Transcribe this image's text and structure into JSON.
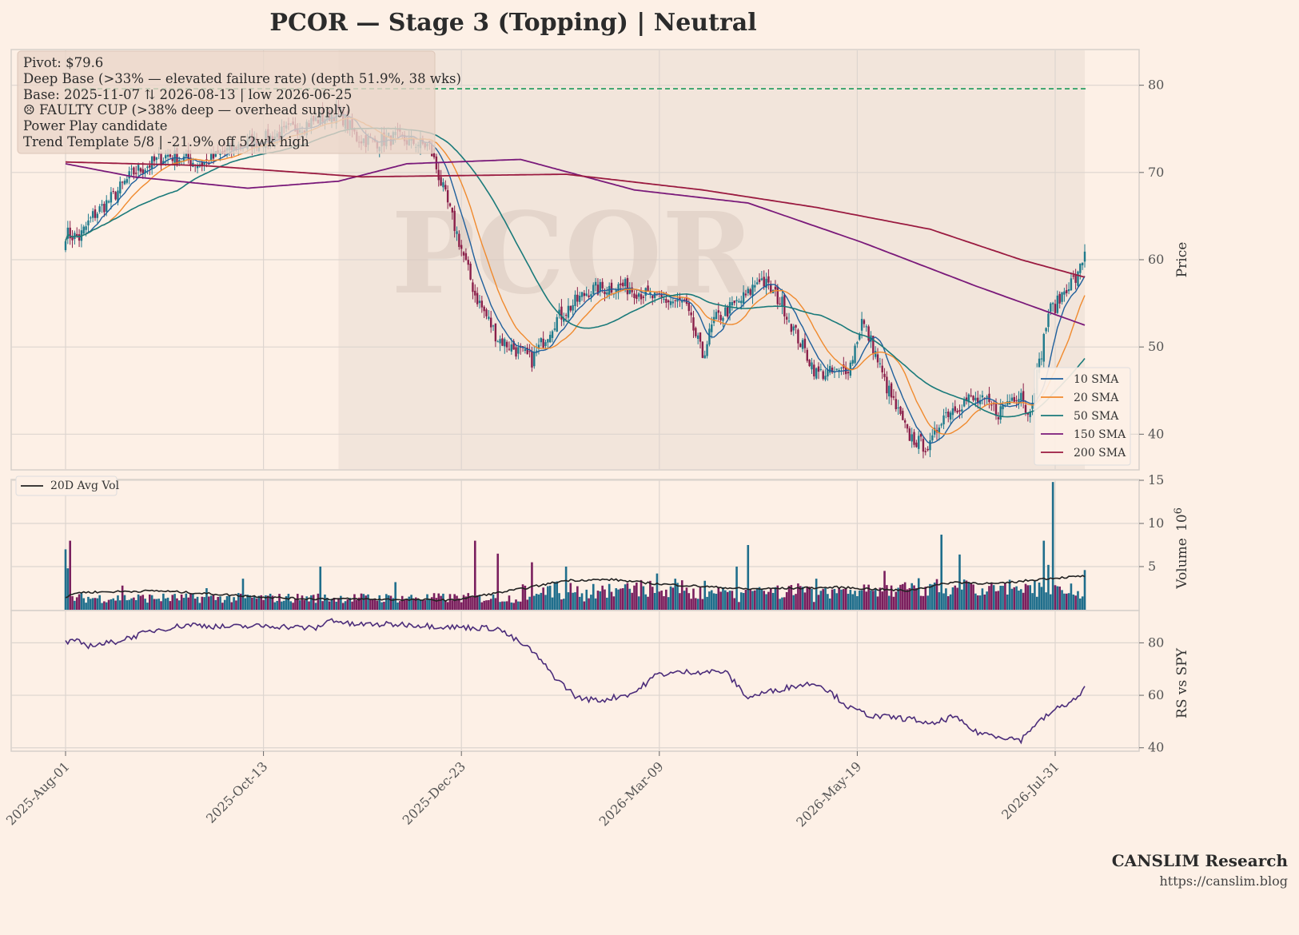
{
  "title": "PCOR  —  Stage 3 (Topping)  |  Neutral",
  "watermark": "PCOR",
  "annotations": [
    "Pivot: $79.6",
    "Deep Base (>33% — elevated failure rate)  (depth 51.9%, 38 wks)",
    "Base: 2025-11-07 ⇅ 2026-08-13  |  low 2026-06-25",
    "☹ FAULTY CUP (>38% deep — overhead supply)",
    "Power Play candidate",
    "Trend Template 5/8  |  -21.9% off 52wk high"
  ],
  "brand": {
    "name": "CANSLIM Research",
    "url": "https://canslim.blog"
  },
  "colors": {
    "background": "#fdf0e6",
    "base_shade": "#f2e5db",
    "up": "#1f7a8c",
    "down": "#8a1f4a",
    "vol_up": "#1f6e8c",
    "vol_down": "#7a1f5e",
    "pivot": "#1a9a5a",
    "rs": "#4b2c7a",
    "avg_vol": "#222222"
  },
  "chart_data": [
    {
      "type": "candlestick",
      "ylabel": "Price",
      "ylim": [
        36,
        84
      ],
      "yticks": [
        40,
        50,
        60,
        70,
        80
      ],
      "x_ticks": [
        "2025-Aug-01",
        "2025-Oct-13",
        "2025-Dec-23",
        "2026-Mar-09",
        "2026-May-19",
        "2026-Jul-31"
      ],
      "pivot": 79.6,
      "base_start": "2025-11-07",
      "base_end": "2026-08-13",
      "legend_position": "lower-right",
      "close_anchors": [
        [
          0,
          63
        ],
        [
          6,
          62.5
        ],
        [
          12,
          65
        ],
        [
          20,
          67
        ],
        [
          30,
          70
        ],
        [
          45,
          72
        ],
        [
          60,
          71
        ],
        [
          75,
          73
        ],
        [
          90,
          74
        ],
        [
          110,
          76
        ],
        [
          120,
          77
        ],
        [
          128,
          74
        ],
        [
          135,
          73.5
        ],
        [
          145,
          74
        ],
        [
          160,
          73
        ],
        [
          172,
          63
        ],
        [
          180,
          56
        ],
        [
          190,
          51
        ],
        [
          205,
          48.5
        ],
        [
          215,
          53
        ],
        [
          230,
          56.5
        ],
        [
          245,
          57
        ],
        [
          260,
          55.5
        ],
        [
          272,
          55
        ],
        [
          280,
          49
        ],
        [
          285,
          53
        ],
        [
          295,
          55
        ],
        [
          300,
          56
        ],
        [
          305,
          58
        ],
        [
          315,
          55
        ],
        [
          320,
          52
        ],
        [
          330,
          47
        ],
        [
          340,
          47
        ],
        [
          345,
          48
        ],
        [
          350,
          53
        ],
        [
          355,
          50
        ],
        [
          360,
          46
        ],
        [
          365,
          43
        ],
        [
          370,
          40
        ],
        [
          375,
          39
        ],
        [
          380,
          38.5
        ],
        [
          385,
          42
        ],
        [
          390,
          43
        ],
        [
          397,
          44
        ],
        [
          405,
          43.5
        ],
        [
          410,
          42.5
        ],
        [
          415,
          44
        ],
        [
          420,
          45
        ],
        [
          423,
          42
        ],
        [
          428,
          48
        ],
        [
          432,
          54
        ],
        [
          436,
          55
        ],
        [
          440,
          57
        ],
        [
          445,
          58
        ],
        [
          448,
          61
        ]
      ],
      "legend": [
        {
          "name": "10 SMA",
          "color": "#1f5f9c"
        },
        {
          "name": "20 SMA",
          "color": "#f08a2e"
        },
        {
          "name": "50 SMA",
          "color": "#1a7a7a"
        },
        {
          "name": "150 SMA",
          "color": "#7a1a7a"
        },
        {
          "name": "200 SMA",
          "color": "#9a1a40"
        }
      ],
      "sma150_anchors": [
        [
          0,
          71
        ],
        [
          30,
          69.5
        ],
        [
          80,
          68.2
        ],
        [
          120,
          69
        ],
        [
          150,
          71
        ],
        [
          200,
          71.5
        ],
        [
          250,
          68
        ],
        [
          300,
          66.5
        ],
        [
          350,
          62
        ],
        [
          400,
          57
        ],
        [
          448,
          52.5
        ]
      ],
      "sma200_anchors": [
        [
          0,
          71.2
        ],
        [
          60,
          70.8
        ],
        [
          130,
          69.5
        ],
        [
          220,
          69.8
        ],
        [
          280,
          68
        ],
        [
          330,
          66
        ],
        [
          380,
          63.5
        ],
        [
          420,
          60
        ],
        [
          448,
          58
        ]
      ]
    },
    {
      "type": "bar",
      "ylabel": "Volume",
      "unit_multiplier": "10^6",
      "ylim": [
        0,
        15
      ],
      "yticks": [
        5,
        10,
        15
      ],
      "legend": [
        {
          "name": "20D Avg Vol",
          "color": "#222222"
        }
      ],
      "base_level": 1.3,
      "spikes": [
        [
          0,
          7
        ],
        [
          1,
          4.8
        ],
        [
          2,
          8
        ],
        [
          25,
          2.8
        ],
        [
          62,
          2.5
        ],
        [
          78,
          3.6
        ],
        [
          112,
          5
        ],
        [
          145,
          3.2
        ],
        [
          180,
          8
        ],
        [
          190,
          6.5
        ],
        [
          205,
          5.5
        ],
        [
          220,
          5
        ],
        [
          260,
          4.2
        ],
        [
          295,
          5
        ],
        [
          300,
          7.5
        ],
        [
          330,
          3.6
        ],
        [
          360,
          4.5
        ],
        [
          385,
          8.7
        ],
        [
          393,
          6.4
        ],
        [
          395,
          3.5
        ],
        [
          430,
          8
        ],
        [
          432,
          5.2
        ],
        [
          434,
          14.8
        ],
        [
          448,
          4.6
        ]
      ],
      "avg_anchors": [
        [
          0,
          1.4
        ],
        [
          5,
          2
        ],
        [
          40,
          2.2
        ],
        [
          80,
          1.6
        ],
        [
          100,
          1.3
        ],
        [
          140,
          1.2
        ],
        [
          170,
          1.1
        ],
        [
          200,
          2.4
        ],
        [
          220,
          3.4
        ],
        [
          240,
          3.5
        ],
        [
          260,
          3
        ],
        [
          300,
          2.4
        ],
        [
          340,
          2.6
        ],
        [
          370,
          2.2
        ],
        [
          390,
          3.2
        ],
        [
          410,
          3
        ],
        [
          430,
          3.6
        ],
        [
          448,
          3.9
        ]
      ]
    },
    {
      "type": "line",
      "ylabel": "RS vs SPY",
      "ylim": [
        39,
        92
      ],
      "yticks": [
        40,
        60,
        80
      ],
      "anchors": [
        [
          0,
          80
        ],
        [
          5,
          80.5
        ],
        [
          10,
          79
        ],
        [
          20,
          80
        ],
        [
          40,
          85
        ],
        [
          55,
          87
        ],
        [
          70,
          86
        ],
        [
          90,
          86.5
        ],
        [
          110,
          85.5
        ],
        [
          117,
          89
        ],
        [
          125,
          87
        ],
        [
          150,
          87
        ],
        [
          170,
          86
        ],
        [
          190,
          85.5
        ],
        [
          205,
          77
        ],
        [
          215,
          67
        ],
        [
          225,
          59
        ],
        [
          235,
          58
        ],
        [
          250,
          61
        ],
        [
          260,
          68
        ],
        [
          275,
          69
        ],
        [
          290,
          69
        ],
        [
          300,
          59
        ],
        [
          305,
          60.5
        ],
        [
          320,
          63.5
        ],
        [
          330,
          64.8
        ],
        [
          335,
          62
        ],
        [
          345,
          55
        ],
        [
          355,
          52
        ],
        [
          365,
          51.5
        ],
        [
          375,
          50.5
        ],
        [
          380,
          48.5
        ],
        [
          390,
          52
        ],
        [
          400,
          46
        ],
        [
          410,
          44.5
        ],
        [
          420,
          43
        ],
        [
          425,
          48
        ],
        [
          435,
          54.5
        ],
        [
          445,
          59
        ],
        [
          448,
          63
        ]
      ]
    }
  ]
}
